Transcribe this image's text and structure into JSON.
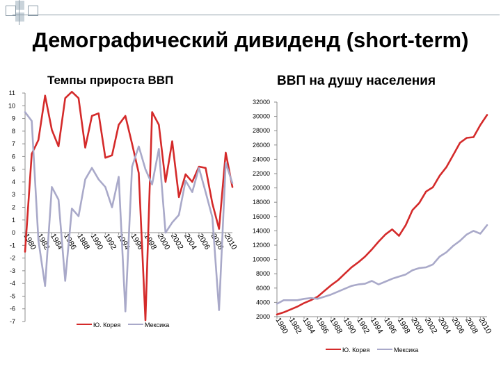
{
  "slide": {
    "title": "Демографический дивиденд (short-term)",
    "left_subtitle": "Темпы прироста ВВП",
    "right_subtitle": "ВВП на душу населения"
  },
  "colors": {
    "korea": "#d42a2a",
    "mexico": "#a9a9c9",
    "axis": "#8c8c8c"
  },
  "chart_data": [
    {
      "type": "line",
      "title": "Темпы прироста ВВП",
      "x": [
        1980,
        1981,
        1982,
        1983,
        1984,
        1985,
        1986,
        1987,
        1988,
        1989,
        1990,
        1991,
        1992,
        1993,
        1994,
        1995,
        1996,
        1997,
        1998,
        1999,
        2000,
        2001,
        2002,
        2003,
        2004,
        2005,
        2006,
        2007,
        2008,
        2009,
        2010,
        2011
      ],
      "x_tick_labels": [
        "1980",
        "1982",
        "1984",
        "1986",
        "1988",
        "1990",
        "1992",
        "1994",
        "1996",
        "1998",
        "2000",
        "2002",
        "2004",
        "2006",
        "2008",
        "2010"
      ],
      "ylim": [
        -7,
        11
      ],
      "y_ticks": [
        -7,
        -6,
        -5,
        -4,
        -3,
        -2,
        -1,
        0,
        1,
        2,
        3,
        4,
        5,
        6,
        7,
        8,
        9,
        10,
        11
      ],
      "legend": "bottom",
      "series": [
        {
          "name": "Ю. Корея",
          "color": "#d42a2a",
          "values": [
            -1.5,
            6.2,
            7.3,
            10.8,
            8.1,
            6.8,
            10.6,
            11.1,
            10.6,
            6.7,
            9.2,
            9.4,
            5.9,
            6.1,
            8.5,
            9.2,
            7.0,
            4.7,
            -6.9,
            9.5,
            8.5,
            4.0,
            7.2,
            2.8,
            4.6,
            4.0,
            5.2,
            5.1,
            2.3,
            0.3,
            6.3,
            3.6
          ]
        },
        {
          "name": "Мексика",
          "color": "#a9a9c9",
          "values": [
            9.5,
            8.8,
            -0.6,
            -4.2,
            3.6,
            2.6,
            -3.8,
            1.9,
            1.3,
            4.2,
            5.1,
            4.2,
            3.6,
            2.0,
            4.4,
            -6.2,
            5.2,
            6.8,
            5.0,
            3.8,
            6.6,
            0.0,
            0.8,
            1.4,
            4.1,
            3.2,
            5.1,
            3.2,
            1.2,
            -6.1,
            5.5,
            3.9
          ]
        }
      ]
    },
    {
      "type": "line",
      "title": "ВВП на душу населения",
      "x": [
        1980,
        1981,
        1982,
        1983,
        1984,
        1985,
        1986,
        1987,
        1988,
        1989,
        1990,
        1991,
        1992,
        1993,
        1994,
        1995,
        1996,
        1997,
        1998,
        1999,
        2000,
        2001,
        2002,
        2003,
        2004,
        2005,
        2006,
        2007,
        2008,
        2009,
        2010,
        2011
      ],
      "x_tick_labels": [
        "1980",
        "1982",
        "1984",
        "1986",
        "1988",
        "1990",
        "1992",
        "1994",
        "1996",
        "1998",
        "2000",
        "2002",
        "2004",
        "2006",
        "2008",
        "2010"
      ],
      "ylim": [
        2000,
        32000
      ],
      "y_ticks": [
        2000,
        4000,
        6000,
        8000,
        10000,
        12000,
        14000,
        16000,
        18000,
        20000,
        22000,
        24000,
        26000,
        28000,
        30000,
        32000
      ],
      "legend": "bottom",
      "series": [
        {
          "name": "Ю. Корея",
          "color": "#d42a2a",
          "values": [
            2300,
            2600,
            3000,
            3400,
            3900,
            4300,
            4800,
            5600,
            6400,
            7100,
            8000,
            8900,
            9600,
            10400,
            11400,
            12500,
            13500,
            14200,
            13300,
            14800,
            16900,
            17900,
            19500,
            20100,
            21700,
            22900,
            24600,
            26300,
            27000,
            27100,
            28800,
            30200
          ]
        },
        {
          "name": "Мексика",
          "color": "#a9a9c9",
          "values": [
            3800,
            4300,
            4300,
            4300,
            4500,
            4600,
            4500,
            4800,
            5100,
            5500,
            5900,
            6300,
            6500,
            6600,
            7000,
            6500,
            6900,
            7300,
            7600,
            7900,
            8500,
            8800,
            8900,
            9300,
            10400,
            11000,
            11900,
            12600,
            13500,
            14000,
            13600,
            14800
          ]
        }
      ]
    }
  ]
}
